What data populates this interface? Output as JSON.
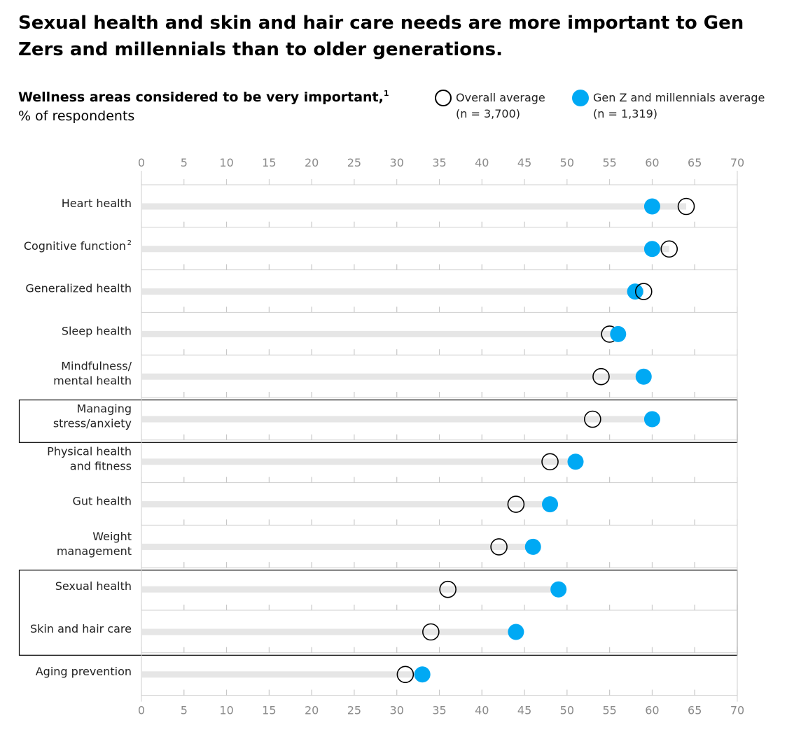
{
  "header": {
    "title": "Sexual health and skin and hair care needs are more important to Gen Zers and millennials than to older generations.",
    "subtitle": "Wellness areas considered to be very important,",
    "subtitle_footnote": "1",
    "unit": "% of respondents"
  },
  "legend": {
    "overall": {
      "label": "Overall average",
      "n": "(n = 3,700)",
      "marker": "hollow-circle",
      "color": "#000000"
    },
    "genz": {
      "label": "Gen Z and millennials average",
      "n": "(n = 1,319)",
      "marker": "filled-circle",
      "color": "#00a9f4"
    }
  },
  "chart_data": {
    "type": "dot-plot",
    "xlim": [
      0,
      70
    ],
    "x_ticks": [
      0,
      5,
      10,
      15,
      20,
      25,
      30,
      35,
      40,
      45,
      50,
      55,
      60,
      65,
      70
    ],
    "axis_position": "top-and-bottom",
    "bar_color": "#e6e6e6",
    "categories": [
      {
        "lines": [
          "Heart health"
        ],
        "footnote": ""
      },
      {
        "lines": [
          "Cognitive function"
        ],
        "footnote": "2"
      },
      {
        "lines": [
          "Generalized health"
        ],
        "footnote": ""
      },
      {
        "lines": [
          "Sleep health"
        ],
        "footnote": ""
      },
      {
        "lines": [
          "Mindfulness/",
          "mental health"
        ],
        "footnote": ""
      },
      {
        "lines": [
          "Managing",
          "stress/anxiety"
        ],
        "footnote": ""
      },
      {
        "lines": [
          "Physical health",
          "and fitness"
        ],
        "footnote": ""
      },
      {
        "lines": [
          "Gut health"
        ],
        "footnote": ""
      },
      {
        "lines": [
          "Weight",
          "management"
        ],
        "footnote": ""
      },
      {
        "lines": [
          "Sexual health"
        ],
        "footnote": ""
      },
      {
        "lines": [
          "Skin and hair care"
        ],
        "footnote": ""
      },
      {
        "lines": [
          "Aging prevention"
        ],
        "footnote": ""
      }
    ],
    "series": [
      {
        "name": "Overall average",
        "values": [
          64,
          62,
          59,
          55,
          54,
          53,
          48,
          44,
          42,
          36,
          34,
          31
        ]
      },
      {
        "name": "Gen Z and millennials average",
        "values": [
          60,
          60,
          58,
          56,
          59,
          60,
          51,
          48,
          46,
          49,
          44,
          33
        ]
      }
    ],
    "highlight_groups": [
      [
        "Managing stress/anxiety"
      ],
      [
        "Sexual health",
        "Skin and hair care"
      ]
    ]
  }
}
